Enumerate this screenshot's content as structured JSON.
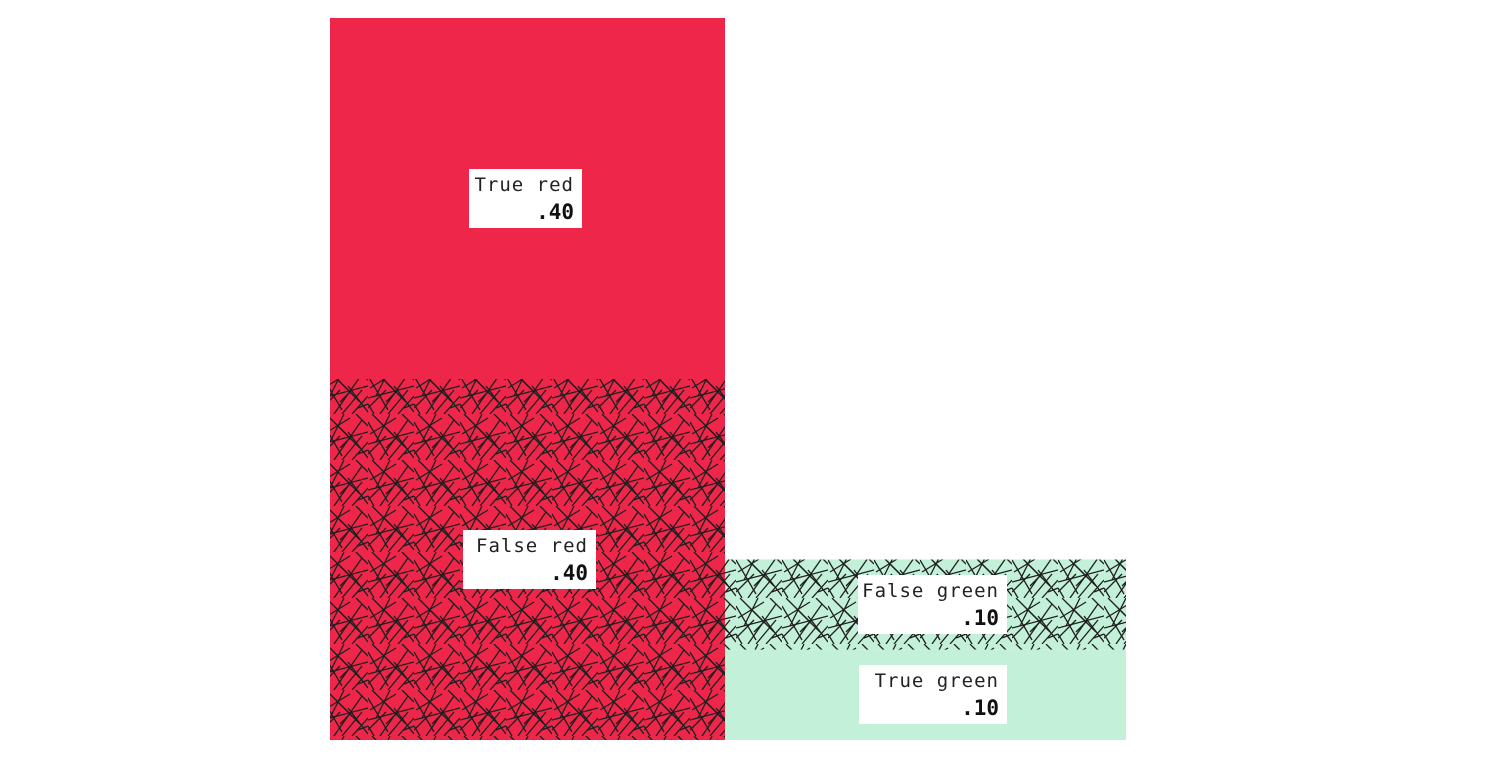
{
  "chart_data": {
    "type": "mosaic",
    "colors": {
      "red": "#ee2649",
      "green": "#c2f0d9",
      "hatch": "#1e1e1e",
      "label_bg": "#ffffff"
    },
    "columns": [
      {
        "color_key": "red",
        "segments": [
          {
            "name": "True red",
            "value_label": ".40",
            "value": 0.4,
            "hatched": false
          },
          {
            "name": "False red",
            "value_label": ".40",
            "value": 0.4,
            "hatched": true
          }
        ]
      },
      {
        "color_key": "green",
        "segments": [
          {
            "name": "False green",
            "value_label": ".10",
            "value": 0.1,
            "hatched": true
          },
          {
            "name": "True green",
            "value_label": ".10",
            "value": 0.1,
            "hatched": false
          }
        ]
      }
    ]
  }
}
